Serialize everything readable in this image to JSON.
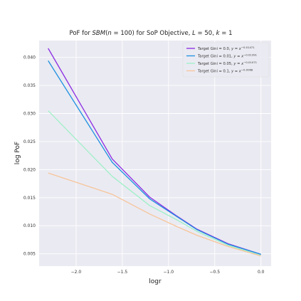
{
  "chart_data": {
    "type": "line",
    "title_parts": [
      {
        "text": "PoF for ",
        "italic": false
      },
      {
        "text": "SBM",
        "italic": true
      },
      {
        "text": "(",
        "italic": false
      },
      {
        "text": "n",
        "italic": true
      },
      {
        "text": " = 100) for SoP Objective, ",
        "italic": false
      },
      {
        "text": "L",
        "italic": true
      },
      {
        "text": " = 50, ",
        "italic": false
      },
      {
        "text": "k",
        "italic": true
      },
      {
        "text": " = 1",
        "italic": false
      }
    ],
    "xlabel": "logr",
    "ylabel": "log PoF",
    "xlim": [
      -2.4,
      0.11
    ],
    "ylim": [
      0.0028,
      0.043
    ],
    "xticks": [
      -2.0,
      -1.5,
      -1.0,
      -0.5,
      0.0
    ],
    "xtick_labels": [
      "−2.0",
      "−1.5",
      "−1.0",
      "−0.5",
      "0.0"
    ],
    "yticks": [
      0.005,
      0.01,
      0.015,
      0.02,
      0.025,
      0.03,
      0.035,
      0.04
    ],
    "ytick_labels": [
      "0.005",
      "0.010",
      "0.015",
      "0.020",
      "0.025",
      "0.030",
      "0.035",
      "0.040"
    ],
    "grid": true,
    "legend_position": "top-right",
    "x": [
      -2.3026,
      -1.6094,
      -1.204,
      -0.9163,
      -0.6931,
      -0.3567,
      0.0
    ],
    "series": [
      {
        "name_prefix": "Target Gini = 0.0, ",
        "name_math": "y = x",
        "name_exponent": "−0.01471",
        "color": "#8a2be2",
        "values": [
          0.0416,
          0.0219,
          0.0151,
          0.0118,
          0.0094,
          0.0068,
          0.0049
        ]
      },
      {
        "name_prefix": "Target Gini = 0.01, ",
        "name_math": "y = x",
        "name_exponent": "−0.01391",
        "color": "#1e90e0",
        "values": [
          0.0394,
          0.0213,
          0.0148,
          0.0117,
          0.0093,
          0.0067,
          0.0049
        ]
      },
      {
        "name_prefix": "Target Gini = 0.05, ",
        "name_math": "y = x",
        "name_exponent": "−0.01071",
        "color": "#9ff0c8",
        "values": [
          0.0305,
          0.0188,
          0.0136,
          0.0111,
          0.009,
          0.0065,
          0.0047
        ]
      },
      {
        "name_prefix": "Target Gini = 0.1, ",
        "name_math": "y = x",
        "name_exponent": "−0.0068",
        "color": "#f7c59a",
        "values": [
          0.0194,
          0.0156,
          0.0121,
          0.0099,
          0.0083,
          0.0063,
          0.0046
        ]
      }
    ]
  }
}
